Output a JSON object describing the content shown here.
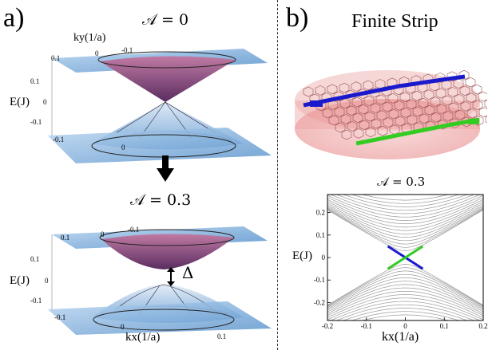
{
  "panel_a": {
    "label": "a)",
    "top_eq": "𝒜 = 0",
    "bottom_eq": "𝒜 = 0.3",
    "ky_label": "ky(1/a)",
    "kx_label": "kx(1/a)",
    "e_label_top": "E(J)",
    "e_label_bottom": "E(J)",
    "gap_label": "Δ",
    "ky_ticks": [
      "0.1",
      "0",
      "-0.1"
    ],
    "e_ticks": [
      "0.1",
      "0",
      "-0.1"
    ],
    "kx_ticks": [
      "-0.1",
      "0",
      "0.1"
    ]
  },
  "panel_b": {
    "label": "b)",
    "title": "Finite Strip",
    "plot_eq": "𝒜 = 0.3",
    "ylabel": "E(J)",
    "xlabel": "kx(1/a)"
  },
  "colors": {
    "surface_blue": "#6fa8dc",
    "surface_pink": "#b04a78",
    "edge_blue": "#1a1acc",
    "edge_green": "#33cc22",
    "band_gray": "#9a9a9a",
    "strip_red": "#e88a8a"
  },
  "chart_data": {
    "type": "line",
    "title": "𝒜 = 0.3",
    "xlabel": "kx(1/a)",
    "ylabel": "E(J)",
    "xlim": [
      -0.2,
      0.2
    ],
    "ylim": [
      -0.28,
      0.28
    ],
    "xticks": [
      "-0.2",
      "-0.1",
      "0",
      "0.1",
      "0.2"
    ],
    "yticks": [
      "0.2",
      "0.1",
      "0",
      "-0.1",
      "-0.2"
    ],
    "bulk_band_offsets": [
      0.03,
      0.045,
      0.06,
      0.075,
      0.09,
      0.105,
      0.12,
      0.135,
      0.15,
      0.165,
      0.18,
      0.195,
      0.21,
      0.225,
      0.24,
      0.255
    ],
    "edge_states": [
      {
        "name": "",
        "color": "#1a1acc",
        "x": [
          -0.045,
          0.045
        ],
        "y": [
          0.05,
          -0.05
        ]
      },
      {
        "name": "",
        "color": "#33cc22",
        "x": [
          -0.045,
          0.045
        ],
        "y": [
          -0.05,
          0.05
        ]
      }
    ]
  }
}
